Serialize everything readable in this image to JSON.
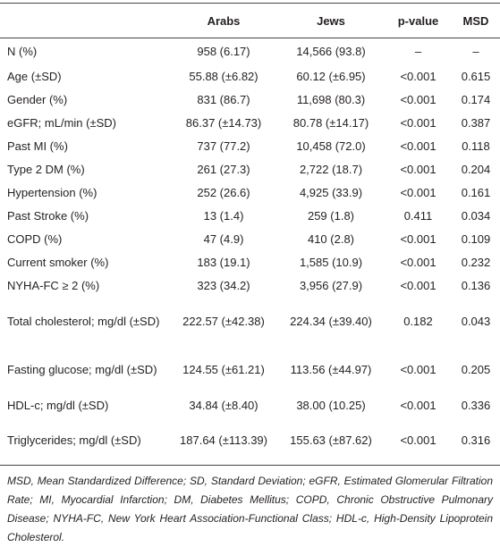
{
  "table": {
    "header": [
      "Arabs",
      "Jews",
      "p-value",
      "MSD"
    ],
    "rows": [
      [
        "N (%)",
        "958 (6.17)",
        "14,566 (93.8)",
        "–",
        "–"
      ],
      [
        "Age (±SD)",
        "55.88 (±6.82)",
        "60.12 (±6.95)",
        "<0.001",
        "0.615"
      ],
      [
        "Gender (%)",
        "831 (86.7)",
        "11,698 (80.3)",
        "<0.001",
        "0.174"
      ],
      [
        "eGFR; mL/min (±SD)",
        "86.37 (±14.73)",
        "80.78 (±14.17)",
        "<0.001",
        "0.387"
      ],
      [
        "Past MI (%)",
        "737 (77.2)",
        "10,458 (72.0)",
        "<0.001",
        "0.118"
      ],
      [
        "Type 2 DM (%)",
        "261 (27.3)",
        "2,722 (18.7)",
        "<0.001",
        "0.204"
      ],
      [
        "Hypertension (%)",
        "252 (26.6)",
        "4,925 (33.9)",
        "<0.001",
        "0.161"
      ],
      [
        "Past Stroke (%)",
        "13 (1.4)",
        "259 (1.8)",
        "0.411",
        "0.034"
      ],
      [
        "COPD (%)",
        "47 (4.9)",
        "410 (2.8)",
        "<0.001",
        "0.109"
      ],
      [
        "Current smoker (%)",
        "183 (19.1)",
        "1,585 (10.9)",
        "<0.001",
        "0.232"
      ],
      [
        "NYHA-FC ≥ 2 (%)",
        "323 (34.2)",
        "3,956 (27.9)",
        "<0.001",
        "0.136"
      ],
      [
        "Total cholesterol; mg/dl (±SD)",
        "222.57 (±42.38)",
        "224.34 (±39.40)",
        "0.182",
        "0.043"
      ],
      [
        "Fasting glucose; mg/dl (±SD)",
        "124.55 (±61.21)",
        "113.56 (±44.97)",
        "<0.001",
        "0.205"
      ],
      [
        "HDL-c; mg/dl (±SD)",
        "34.84 (±8.40)",
        "38.00 (10.25)",
        "<0.001",
        "0.336"
      ],
      [
        "Triglycerides; mg/dl (±SD)",
        "187.64 (±113.39)",
        "155.63 (±87.62)",
        "<0.001",
        "0.316"
      ]
    ]
  },
  "footnote": "MSD, Mean Standardized Difference; SD, Standard Deviation; eGFR, Estimated Glomerular Filtration Rate; MI, Myocardial Infarction; DM, Diabetes Mellitus; COPD, Chronic Obstructive Pulmonary Disease; NYHA-FC, New York Heart Association-Functional Class; HDL-c, High-Density Lipoprotein Cholesterol."
}
